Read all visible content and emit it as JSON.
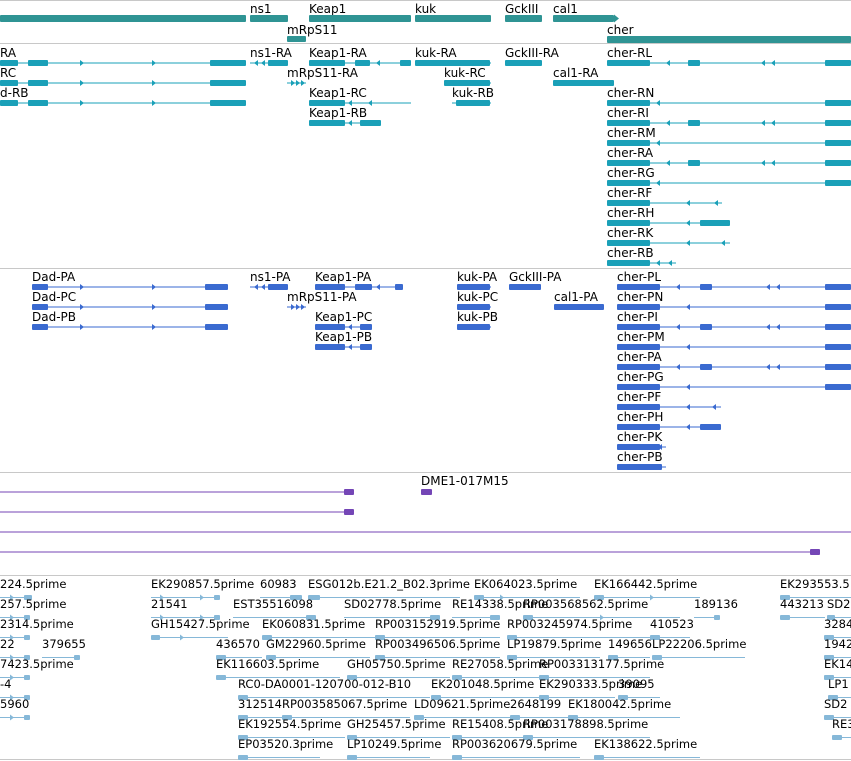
{
  "colors": {
    "teal": "#2f9494",
    "cyan": "#1aa0b8",
    "blue": "#3a6ad0",
    "purple": "#7446b6",
    "est": "#86b8d8",
    "separator": "#c8c8c8"
  },
  "tracks": {
    "genes": [
      {
        "label": "ns1"
      },
      {
        "label": "Keap1"
      },
      {
        "label": "kuk"
      },
      {
        "label": "GckIII"
      },
      {
        "label": "cal1"
      },
      {
        "label": "mRpS11"
      },
      {
        "label": "cher"
      }
    ],
    "transcripts_a": [
      "RA",
      "RC",
      "d-RB",
      "ns1-RA",
      "mRpS11-RA",
      "Keap1-RA",
      "Keap1-RC",
      "Keap1-RB",
      "kuk-RA",
      "kuk-RC",
      "kuk-RB",
      "GckIII-RA",
      "cal1-RA",
      "cher-RL",
      "cher-RN",
      "cher-RI",
      "cher-RM",
      "cher-RA",
      "cher-RG",
      "cher-RF",
      "cher-RH",
      "cher-RK",
      "cher-RB"
    ],
    "transcripts_b": [
      "Dad-PA",
      "Dad-PC",
      "Dad-PB",
      "ns1-PA",
      "mRpS11-PA",
      "Keap1-PA",
      "Keap1-PC",
      "Keap1-PB",
      "kuk-PA",
      "kuk-PC",
      "kuk-PB",
      "GckIII-PA",
      "cal1-PA",
      "cher-PL",
      "cher-PN",
      "cher-PI",
      "cher-PM",
      "cher-PA",
      "cher-PG",
      "cher-PF",
      "cher-PH",
      "cher-PK",
      "cher-PB"
    ],
    "clones": [
      "DME1-017M15"
    ],
    "ests": [
      "224.5prime",
      "EK290857.5prime",
      "60983",
      "ESG012b.E21.2_B02.3prime",
      "EK064023.5prime",
      "EK166442.5prime",
      "EK293553.5",
      "257.5prime",
      "21541",
      "EST35516098",
      "SD02778.5prime",
      "RE14338.5prime",
      "RP003568562.5prime",
      "189136",
      "443213",
      "SD2",
      "2314.5prime",
      "GH15427.5prime",
      "EK060831.5prime",
      "RP003152919.5prime",
      "RP003245974.5prime",
      "410523",
      "3284",
      "22",
      "379655",
      "436570",
      "GM22960.5prime",
      "RP003496506.5prime",
      "LP19879.5prime",
      "149656",
      "LP22206.5prime",
      "1942",
      "7423.5prime",
      "EK116603.5prime",
      "GH05750.5prime",
      "RE27058.5prime",
      "RP003313177.5prime",
      "EK14",
      "-4",
      "RC0-DA0001-120700-012-B10",
      "EK201048.5prime",
      "EK290333.5prime",
      "39095",
      "LP1",
      "5960",
      "312514",
      "RP003585067.5prime",
      "LD09621.5prime",
      "2648199",
      "EK180042.5prime",
      "SD2",
      "EK192554.5prime",
      "GH25457.5prime",
      "RE15408.5prime",
      "RP003178898.5prime",
      "RE3",
      "EP03520.3prime",
      "LP10249.5prime",
      "RP003620679.5prime",
      "EK138622.5prime"
    ]
  }
}
